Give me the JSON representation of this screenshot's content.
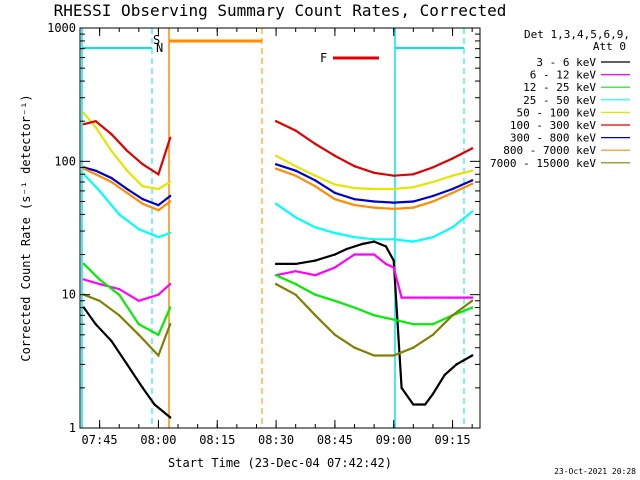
{
  "chart_data": {
    "type": "line",
    "title": "RHESSI Observing Summary Count Rates, Corrected",
    "xlabel": "Start Time (23-Dec-04 07:42:42)",
    "ylabel": "Corrected Count Rate (s⁻¹ detector⁻¹)",
    "yscale": "log",
    "ylim": [
      1,
      1000
    ],
    "xlim": [
      "07:40",
      "09:22"
    ],
    "x_ticks": [
      "07:45",
      "08:00",
      "08:15",
      "08:30",
      "08:45",
      "09:00",
      "09:15"
    ],
    "y_ticks": [
      "1",
      "10",
      "100",
      "1000"
    ],
    "legend_header": [
      "Det 1,3,4,5,6,9,",
      "Att 0"
    ],
    "legend_placement": "right",
    "footer_date": "23-Oct-2021 20:28",
    "markers": {
      "s_label": "S",
      "n_label": "N",
      "f_label": "F",
      "night_color": "#00e5ee",
      "saa_color": "#ff8c00",
      "flare_color": "#e00000"
    },
    "series": [
      {
        "name": "3 - 6 keV",
        "color": "#000000",
        "x": [
          "07:41",
          "07:44",
          "07:48",
          "07:52",
          "07:56",
          "07:59",
          "08:03",
          "08:30",
          "08:35",
          "08:40",
          "08:45",
          "08:48",
          "08:52",
          "08:55",
          "08:58",
          "09:00",
          "09:02",
          "09:05",
          "09:08",
          "09:10",
          "09:13",
          "09:16",
          "09:20"
        ],
        "y": [
          8,
          6,
          4.5,
          3,
          2,
          1.5,
          1.2,
          17,
          17,
          18,
          20,
          22,
          24,
          25,
          23,
          18,
          2,
          1.5,
          1.5,
          1.8,
          2.5,
          3,
          3.5
        ]
      },
      {
        "name": "6 - 12 keV",
        "color": "#ff00ff",
        "x": [
          "07:41",
          "07:45",
          "07:50",
          "07:55",
          "08:00",
          "08:03",
          "08:30",
          "08:35",
          "08:40",
          "08:45",
          "08:50",
          "08:55",
          "08:58",
          "09:00",
          "09:02",
          "09:08",
          "09:14",
          "09:20"
        ],
        "y": [
          13,
          12,
          11,
          9,
          10,
          12,
          14,
          15,
          14,
          16,
          20,
          20,
          17,
          16,
          9.5,
          9.5,
          9.5,
          9.5
        ]
      },
      {
        "name": "12 - 25 keV",
        "color": "#00ee00",
        "x": [
          "07:41",
          "07:45",
          "07:50",
          "07:55",
          "08:00",
          "08:03",
          "08:30",
          "08:35",
          "08:40",
          "08:45",
          "08:50",
          "08:55",
          "09:00",
          "09:05",
          "09:10",
          "09:15",
          "09:20"
        ],
        "y": [
          17,
          13,
          10,
          6,
          5,
          8,
          14,
          12,
          10,
          9,
          8,
          7,
          6.5,
          6,
          6,
          7,
          8
        ]
      },
      {
        "name": "25 - 50 keV",
        "color": "#00ffff",
        "x": [
          "07:41",
          "07:45",
          "07:50",
          "07:55",
          "08:00",
          "08:03",
          "08:30",
          "08:35",
          "08:40",
          "08:45",
          "08:50",
          "08:55",
          "09:00",
          "09:05",
          "09:10",
          "09:15",
          "09:20"
        ],
        "y": [
          80,
          60,
          40,
          31,
          27,
          29,
          48,
          38,
          32,
          29,
          27,
          26,
          26,
          25,
          27,
          32,
          42
        ]
      },
      {
        "name": "50 - 100 keV",
        "color": "#e5e500",
        "x": [
          "07:41",
          "07:44",
          "07:48",
          "07:52",
          "07:56",
          "08:00",
          "08:03",
          "08:30",
          "08:35",
          "08:40",
          "08:45",
          "08:50",
          "08:55",
          "09:00",
          "09:05",
          "09:10",
          "09:15",
          "09:20"
        ],
        "y": [
          230,
          180,
          120,
          85,
          65,
          62,
          70,
          110,
          92,
          78,
          67,
          63,
          62,
          62,
          64,
          70,
          78,
          85
        ]
      },
      {
        "name": "100 - 300 keV",
        "color": "#e00000",
        "x": [
          "07:41",
          "07:44",
          "07:48",
          "07:52",
          "07:56",
          "08:00",
          "08:03",
          "08:30",
          "08:35",
          "08:40",
          "08:45",
          "08:50",
          "08:55",
          "09:00",
          "09:05",
          "09:10",
          "09:15",
          "09:20"
        ],
        "y": [
          190,
          200,
          160,
          120,
          95,
          80,
          150,
          200,
          170,
          135,
          110,
          92,
          82,
          78,
          80,
          90,
          105,
          125
        ]
      },
      {
        "name": "300 - 800 keV",
        "color": "#0000cd",
        "x": [
          "07:41",
          "07:44",
          "07:48",
          "07:52",
          "07:56",
          "08:00",
          "08:03",
          "08:30",
          "08:35",
          "08:40",
          "08:45",
          "08:50",
          "08:55",
          "09:00",
          "09:05",
          "09:10",
          "09:15",
          "09:20"
        ],
        "y": [
          90,
          85,
          75,
          62,
          52,
          47,
          55,
          95,
          85,
          72,
          58,
          52,
          50,
          49,
          50,
          55,
          62,
          72
        ]
      },
      {
        "name": "800 - 7000 keV",
        "color": "#ff8c00",
        "x": [
          "07:41",
          "07:44",
          "07:48",
          "07:52",
          "07:56",
          "08:00",
          "08:03",
          "08:30",
          "08:35",
          "08:40",
          "08:45",
          "08:50",
          "08:55",
          "09:00",
          "09:05",
          "09:10",
          "09:15",
          "09:20"
        ],
        "y": [
          88,
          80,
          70,
          58,
          48,
          43,
          50,
          88,
          78,
          65,
          52,
          47,
          45,
          44,
          45,
          50,
          58,
          68
        ]
      },
      {
        "name": "7000 - 15000 keV",
        "color": "#808000",
        "x": [
          "07:41",
          "07:45",
          "07:50",
          "07:55",
          "08:00",
          "08:03",
          "08:30",
          "08:35",
          "08:40",
          "08:45",
          "08:50",
          "08:55",
          "09:00",
          "09:05",
          "09:10",
          "09:15",
          "09:20"
        ],
        "y": [
          10,
          9,
          7,
          5,
          3.5,
          6,
          12,
          10,
          7,
          5,
          4,
          3.5,
          3.5,
          4,
          5,
          7,
          9
        ]
      }
    ]
  }
}
